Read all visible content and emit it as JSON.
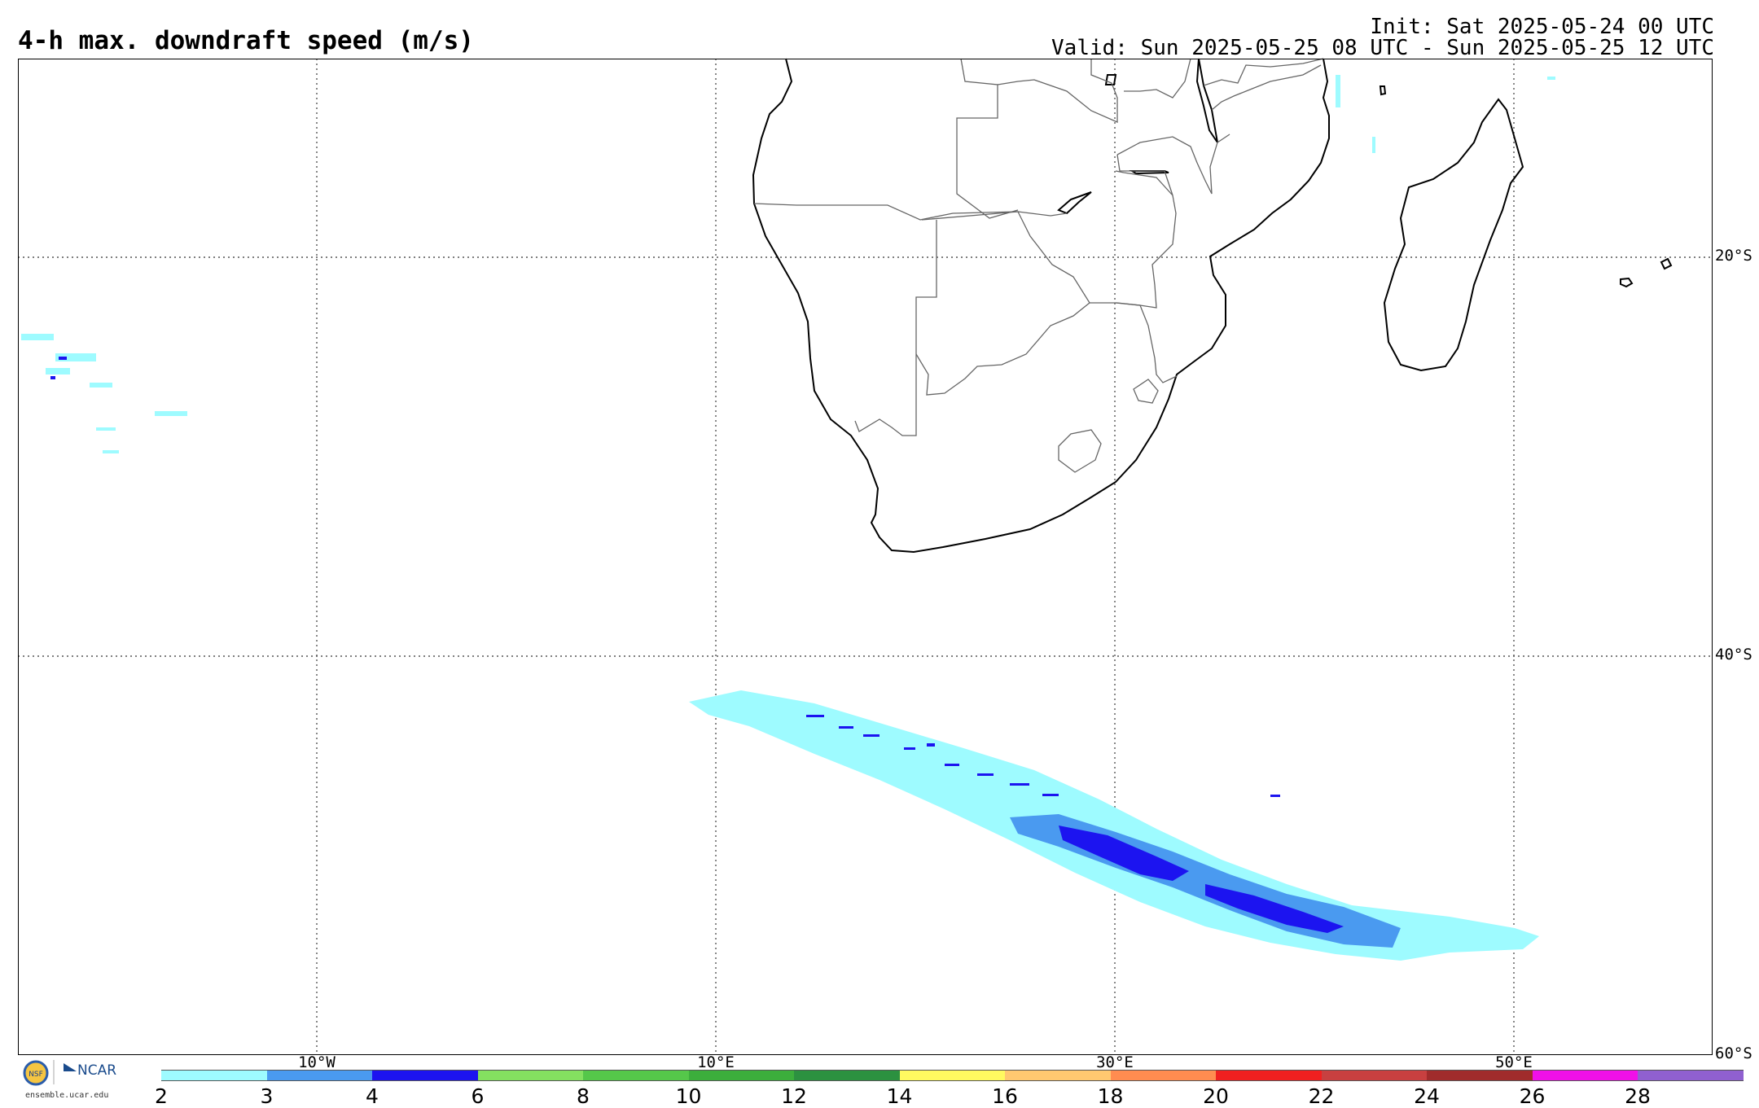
{
  "title": "4-h max. downdraft speed (m/s)",
  "init_text": "Init: Sat 2025-05-24 00 UTC",
  "valid_text": "Valid: Sun 2025-05-25 08 UTC - Sun 2025-05-25 12 UTC",
  "lat_labels": [
    "20°S",
    "40°S",
    "60°S"
  ],
  "lon_labels": [
    "10°W",
    "10°E",
    "30°E",
    "50°E"
  ],
  "colorbar": {
    "ticks": [
      "2",
      "3",
      "4",
      "6",
      "8",
      "10",
      "12",
      "14",
      "16",
      "18",
      "20",
      "22",
      "24",
      "26",
      "28"
    ],
    "colors": [
      "#9efbff",
      "#4a9af0",
      "#1c14f0",
      "#84e060",
      "#55c74a",
      "#3cae3c",
      "#2c9140",
      "#fffa60",
      "#ffc870",
      "#ff8c50",
      "#f02020",
      "#c84040",
      "#a02c2c",
      "#f010e8",
      "#9060d0"
    ]
  },
  "logo": {
    "org1": "NSF",
    "org2": "NCAR",
    "url": "ensemble.ucar.edu"
  }
}
